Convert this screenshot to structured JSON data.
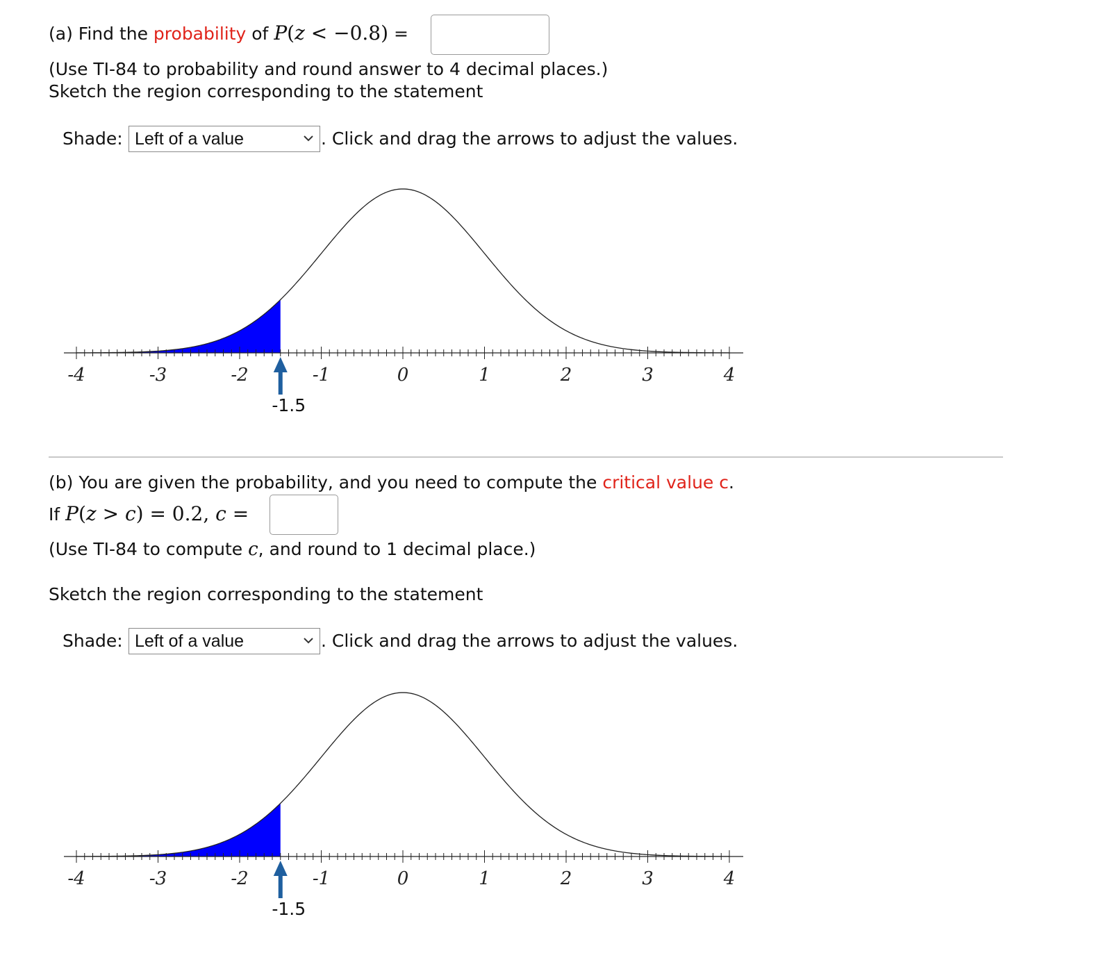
{
  "part_a": {
    "prefix": "(a) Find the ",
    "link": "probability",
    "of": " of ",
    "math_P": "P",
    "math_open": "(",
    "math_z": "z",
    "math_rest": " < −0.8)",
    "equals": "=",
    "answer_value": "",
    "instruction": "(Use TI-84 to probability and round answer to 4 decimal places.)",
    "sketch": "Sketch the region corresponding to the statement",
    "shade_label": "Shade:",
    "shade_selected": "Left of a value",
    "drag_hint": ". Click and drag the arrows to adjust the values.",
    "arrow_value": "-1.5"
  },
  "part_b": {
    "line1_prefix": "(b) You are given the probability, and you need to compute the ",
    "link": "critical value c",
    "line1_suffix": ".",
    "if": "If ",
    "math_P": "P",
    "math_open": "(",
    "math_z": "z",
    "math_gt": " > ",
    "math_c": "c",
    "math_close": ") = 0.2, ",
    "math_c2": "c",
    "math_eq": " =",
    "answer_value": "",
    "instr_prefix": "(Use TI-84 to compute ",
    "instr_c": "c",
    "instr_suffix": ", and round to 1 decimal place.)",
    "sketch": "Sketch the region corresponding to the statement",
    "shade_label": "Shade:",
    "shade_selected": "Left of a value",
    "drag_hint": ". Click and drag the arrows to adjust the values.",
    "arrow_value": "-1.5"
  },
  "colors": {
    "shade": "#0000ff",
    "arrow": "#1f5f9f",
    "link": "#e0231a"
  },
  "chart_data": [
    {
      "type": "area",
      "distribution": "standard normal",
      "xlim": [
        -4,
        4
      ],
      "major_ticks": [
        -4,
        -3,
        -2,
        -1,
        0,
        1,
        2,
        3,
        4
      ],
      "tick_labels": [
        "-4",
        "-3",
        "-2",
        "-1",
        "0",
        "1",
        "2",
        "3",
        "4"
      ],
      "minor_tick_step": 0.1,
      "shade": "left",
      "boundary": -1.5,
      "grid": false
    },
    {
      "type": "area",
      "distribution": "standard normal",
      "xlim": [
        -4,
        4
      ],
      "major_ticks": [
        -4,
        -3,
        -2,
        -1,
        0,
        1,
        2,
        3,
        4
      ],
      "tick_labels": [
        "-4",
        "-3",
        "-2",
        "-1",
        "0",
        "1",
        "2",
        "3",
        "4"
      ],
      "minor_tick_step": 0.1,
      "shade": "left",
      "boundary": -1.5,
      "grid": false
    }
  ]
}
